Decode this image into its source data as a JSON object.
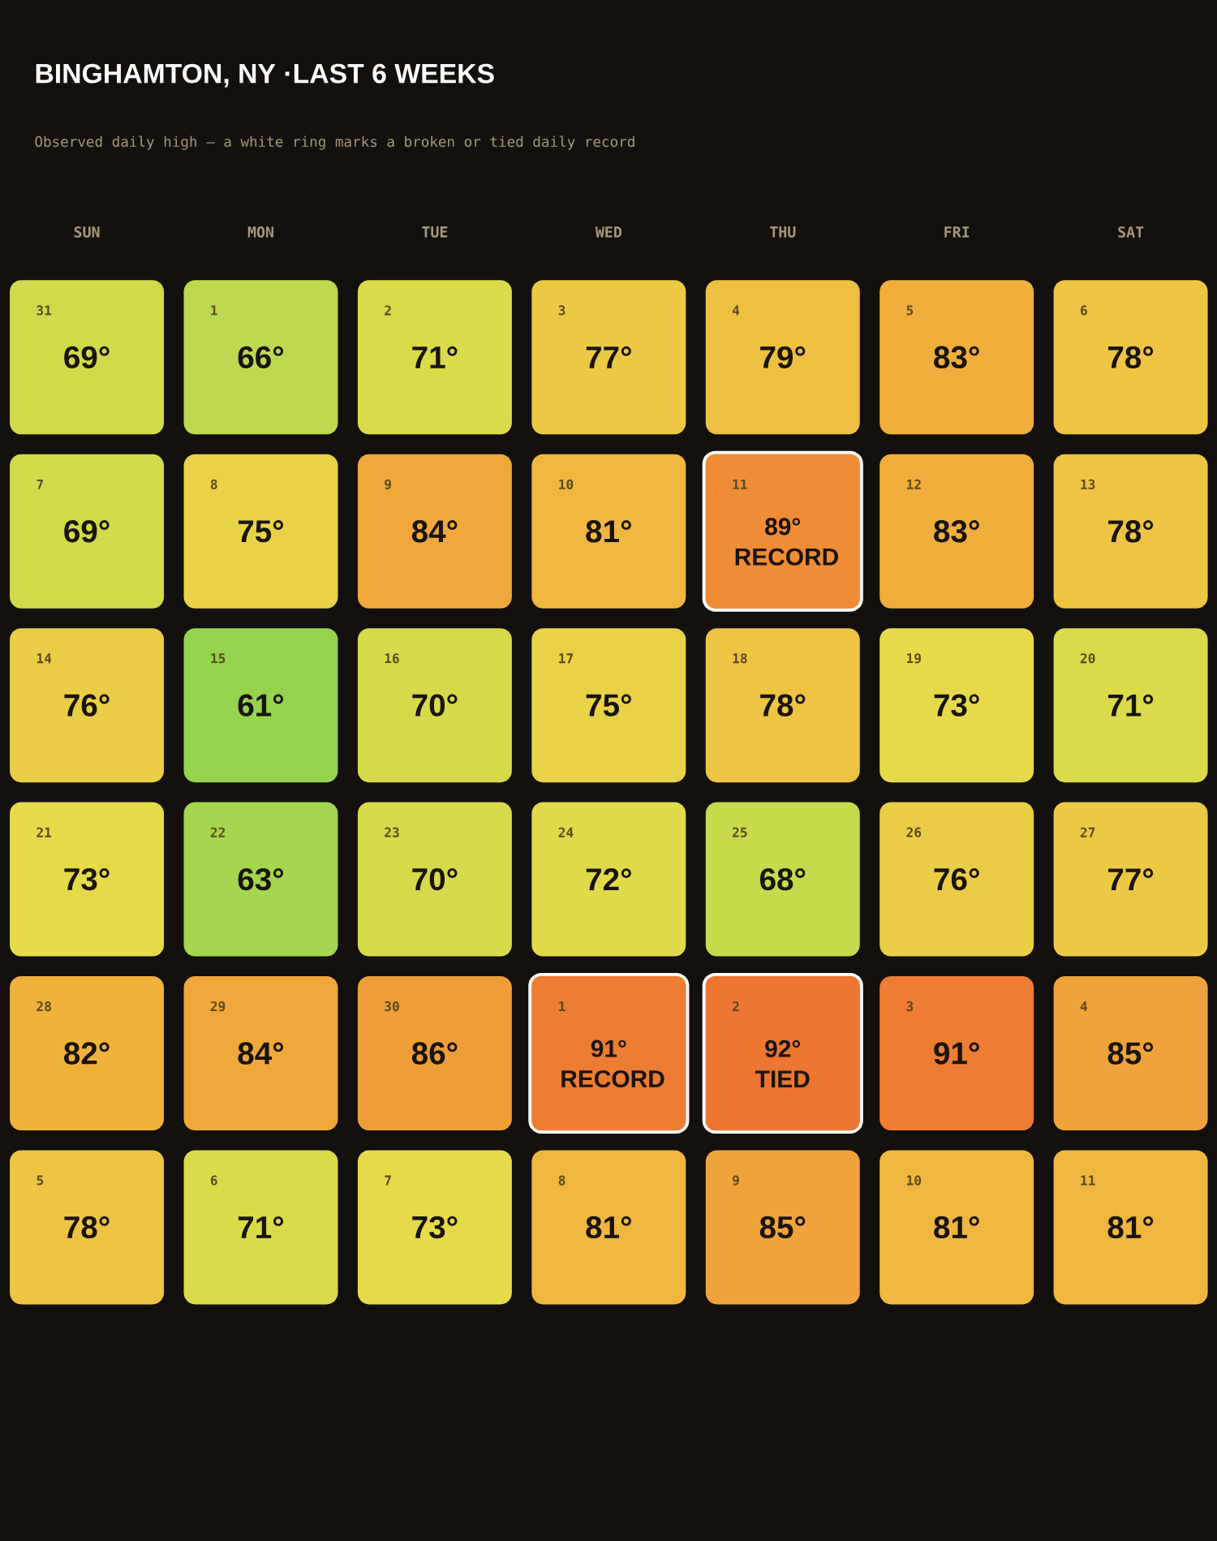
{
  "chart_data": {
    "type": "heatmap",
    "title": "BINGHAMTON, NY ·LAST 6 WEEKS",
    "subtitle": "Observed daily high — a white ring marks a broken or tied daily record",
    "categories": [
      "SUN",
      "MON",
      "TUE",
      "WED",
      "THU",
      "FRI",
      "SAT"
    ],
    "y_categories": [
      null,
      null,
      null,
      null,
      null,
      null
    ],
    "cells": [
      [
        69,
        66,
        71,
        77,
        79,
        83,
        78
      ],
      [
        69,
        75,
        84,
        81,
        89,
        83,
        78
      ],
      [
        76,
        61,
        70,
        75,
        78,
        73,
        71
      ],
      [
        73,
        63,
        70,
        72,
        68,
        76,
        77
      ],
      [
        82,
        84,
        86,
        91,
        92,
        91,
        85
      ],
      [
        78,
        71,
        73,
        81,
        85,
        81,
        81
      ]
    ],
    "cell_labels": [
      [
        "69°",
        "66°",
        "71°",
        "77°",
        "79°",
        "83°",
        "78°"
      ],
      [
        "69°",
        "75°",
        "84°",
        "81°",
        "89° RECORD",
        "83°",
        "78°"
      ],
      [
        "76°",
        "61°",
        "70°",
        "75°",
        "78°",
        "73°",
        "71°"
      ],
      [
        "73°",
        "63°",
        "70°",
        "72°",
        "68°",
        "76°",
        "77°"
      ],
      [
        "82°",
        "84°",
        "86°",
        "91° RECORD",
        "92° TIED",
        "91°",
        "85°"
      ],
      [
        "78°",
        "71°",
        "73°",
        "81°",
        "85°",
        "81°",
        "81°"
      ]
    ],
    "annotations": [
      "31",
      "1",
      "2",
      "3",
      "4",
      "5",
      "6",
      "7",
      "8",
      "9",
      "10",
      "11",
      "12",
      "13",
      "14",
      "15",
      "16",
      "17",
      "18",
      "19",
      "20",
      "21",
      "22",
      "23",
      "24",
      "25",
      "26",
      "27",
      "28",
      "29",
      "30",
      "1",
      "2",
      "3",
      "4",
      "5",
      "6",
      "7",
      "8",
      "9",
      "10",
      "11"
    ]
  }
}
